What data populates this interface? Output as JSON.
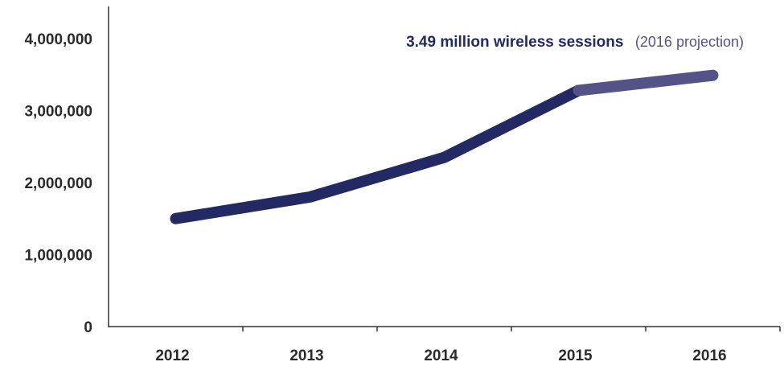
{
  "colors": {
    "axis": "#333333",
    "tick_text": "#2b2b2b",
    "actual_line": "#232a63",
    "projection_line": "#555287",
    "annotation_bold": "#232a63",
    "annotation_light": "#555287"
  },
  "chart_data": {
    "type": "line",
    "categories": [
      "2012",
      "2013",
      "2014",
      "2015",
      "2016"
    ],
    "series": [
      {
        "values": [
          1500000,
          1800000,
          2350000,
          3280000,
          3490000
        ],
        "projected_from_index": 3
      }
    ],
    "ylim": [
      0,
      4000000
    ],
    "yticks": [
      0,
      1000000,
      2000000,
      3000000,
      4000000
    ],
    "ytick_labels": [
      "0",
      "1,000,000",
      "2,000,000",
      "3,000,000",
      "4,000,000"
    ],
    "grid": false,
    "legend": "none",
    "annotation": {
      "bold_text": "3.49 million wireless sessions",
      "light_text": "(2016 projection)"
    }
  }
}
